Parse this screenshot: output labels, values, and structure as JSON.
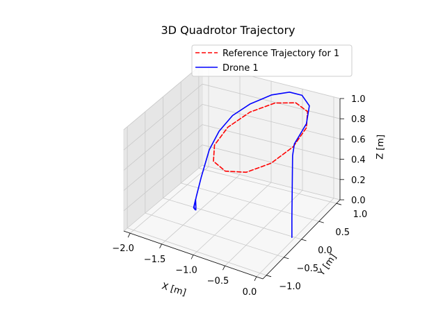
{
  "chart_data": {
    "type": "line",
    "projection": "3d",
    "title": "3D Quadrotor Trajectory",
    "xlabel": "X [m]",
    "ylabel": "Y [m]",
    "zlabel": "Z [m]",
    "x_ticks": [
      "−2.0",
      "−1.5",
      "−1.0",
      "−0.5",
      "0.0"
    ],
    "y_ticks": [
      "−1.0",
      "−0.5",
      "0.0",
      "0.5",
      "1.0"
    ],
    "z_ticks": [
      "0.0",
      "0.2",
      "0.4",
      "0.6",
      "0.8",
      "1.0"
    ],
    "xlim": [
      -2.1,
      0.1
    ],
    "ylim": [
      -1.1,
      1.1
    ],
    "zlim": [
      0.0,
      1.0
    ],
    "grid": true,
    "legend_position": "top-right",
    "series": [
      {
        "name": "Reference Trajectory for 1",
        "color": "#ff0000",
        "style": "dashed",
        "points": [
          [
            -0.03,
            0.0,
            0.89
          ],
          [
            -0.1,
            0.5,
            0.89
          ],
          [
            -0.29,
            0.87,
            0.89
          ],
          [
            -0.55,
            1.0,
            0.89
          ],
          [
            -0.81,
            0.87,
            0.89
          ],
          [
            -1.0,
            0.5,
            0.89
          ],
          [
            -1.07,
            0.0,
            0.89
          ],
          [
            -1.0,
            -0.5,
            0.89
          ],
          [
            -0.81,
            -0.87,
            0.89
          ],
          [
            -0.55,
            -1.0,
            0.89
          ],
          [
            -0.29,
            -0.87,
            0.89
          ],
          [
            -0.1,
            -0.5,
            0.89
          ],
          [
            -0.03,
            0.0,
            0.89
          ]
        ]
      },
      {
        "name": "Drone 1",
        "color": "#0000ff",
        "style": "solid",
        "points": [
          [
            -1.55,
            -0.05,
            0.0
          ],
          [
            -1.55,
            -0.05,
            0.04
          ],
          [
            -1.56,
            -0.04,
            0.1
          ],
          [
            -1.58,
            -0.06,
            0.02
          ],
          [
            -1.56,
            -0.05,
            0.0
          ],
          [
            -1.58,
            -0.05,
            0.02
          ],
          [
            -1.56,
            -0.02,
            0.12
          ],
          [
            -1.52,
            0.05,
            0.3
          ],
          [
            -1.45,
            0.15,
            0.55
          ],
          [
            -1.35,
            0.25,
            0.72
          ],
          [
            -1.22,
            0.4,
            0.85
          ],
          [
            -1.05,
            0.6,
            0.93
          ],
          [
            -0.85,
            0.85,
            0.97
          ],
          [
            -0.65,
            1.0,
            0.98
          ],
          [
            -0.45,
            1.0,
            0.98
          ],
          [
            -0.25,
            0.85,
            0.96
          ],
          [
            -0.1,
            0.5,
            0.93
          ],
          [
            -0.05,
            0.2,
            0.92
          ],
          [
            -0.04,
            0.05,
            0.9
          ],
          [
            -0.04,
            0.0,
            0.8
          ],
          [
            -0.04,
            -0.01,
            0.5
          ],
          [
            -0.04,
            -0.02,
            0.2
          ],
          [
            -0.04,
            -0.02,
            0.0
          ]
        ]
      }
    ]
  }
}
